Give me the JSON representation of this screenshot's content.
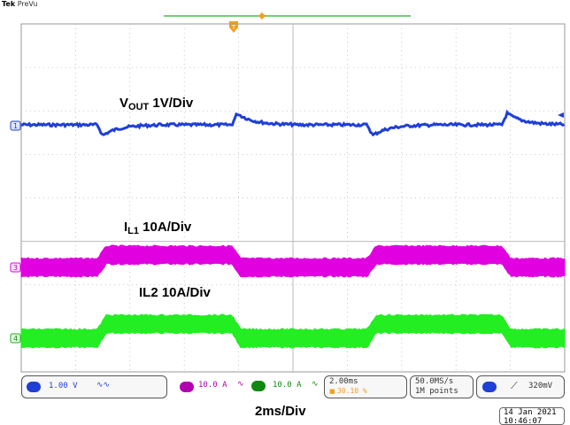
{
  "header": {
    "brand": "Tek",
    "mode": "PreVu"
  },
  "channels": {
    "ch1": {
      "marker": "1",
      "color": "#1f3fd6",
      "annotation_main": "V",
      "annotation_sub": "OUT",
      "annotation_rest": " 1V/Div",
      "scale": "1.00 V"
    },
    "ch3": {
      "marker": "3",
      "color": "#e000e0",
      "annotation_main": "I",
      "annotation_sub": "L1",
      "annotation_rest": " 10A/Div",
      "scale": "10.0 A"
    },
    "ch4": {
      "marker": "4",
      "color": "#22ee22",
      "annotation_main": "IL2 10A/Div",
      "scale": "10.0 A"
    }
  },
  "timebase": {
    "per_div": "2.00ms",
    "position": "30.10 %",
    "sample_rate": "50.0MS/s",
    "record": "1M points"
  },
  "trigger": {
    "source": "1",
    "level": "320mV"
  },
  "footer": {
    "time_label": "2ms/Div",
    "date": "14 Jan  2021",
    "time": "10:46:07"
  },
  "colors": {
    "grid": "#b8b8b8",
    "ch1": "#1f3fd6",
    "ch3": "#e000e0",
    "ch4": "#22ee22",
    "trigger_marker": "#f0a020",
    "record_bar": "#40c040"
  }
}
